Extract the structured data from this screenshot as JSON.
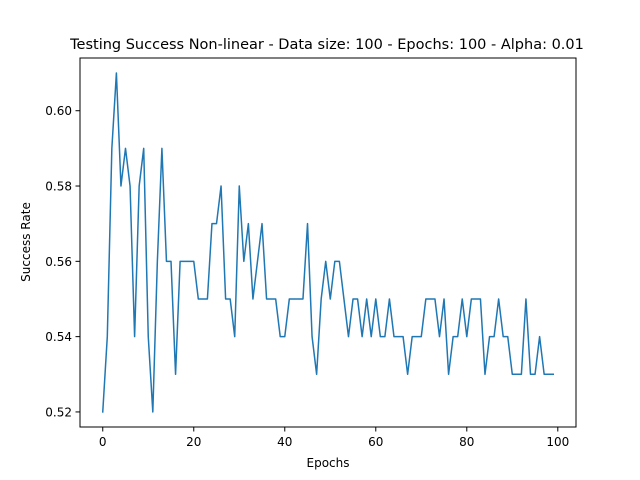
{
  "chart_data": {
    "type": "line",
    "title": "Testing Success Non-linear - Data size: 100 - Epochs: 100 - Alpha: 0.01",
    "xlabel": "Epochs",
    "ylabel": "Success Rate",
    "xlim": [
      -5,
      104
    ],
    "ylim": [
      0.516,
      0.614
    ],
    "xticks": [
      0,
      20,
      40,
      60,
      80,
      100
    ],
    "yticks": [
      0.52,
      0.54,
      0.56,
      0.58,
      0.6
    ],
    "ytick_labels": [
      "0.52",
      "0.54",
      "0.56",
      "0.58",
      "0.60"
    ],
    "grid": false,
    "legend": "none",
    "series": [
      {
        "color": "#1f77b4",
        "x": [
          0,
          1,
          2,
          3,
          4,
          5,
          6,
          7,
          8,
          9,
          10,
          11,
          12,
          13,
          14,
          15,
          16,
          17,
          18,
          19,
          20,
          21,
          22,
          23,
          24,
          25,
          26,
          27,
          28,
          29,
          30,
          31,
          32,
          33,
          34,
          35,
          36,
          37,
          38,
          39,
          40,
          41,
          42,
          43,
          44,
          45,
          46,
          47,
          48,
          49,
          50,
          51,
          52,
          53,
          54,
          55,
          56,
          57,
          58,
          59,
          60,
          61,
          62,
          63,
          64,
          65,
          66,
          67,
          68,
          69,
          70,
          71,
          72,
          73,
          74,
          75,
          76,
          77,
          78,
          79,
          80,
          81,
          82,
          83,
          84,
          85,
          86,
          87,
          88,
          89,
          90,
          91,
          92,
          93,
          94,
          95,
          96,
          97,
          98,
          99
        ],
        "values": [
          0.52,
          0.54,
          0.59,
          0.61,
          0.58,
          0.59,
          0.58,
          0.54,
          0.58,
          0.59,
          0.54,
          0.52,
          0.56,
          0.59,
          0.56,
          0.56,
          0.53,
          0.56,
          0.56,
          0.56,
          0.56,
          0.55,
          0.55,
          0.55,
          0.57,
          0.57,
          0.58,
          0.55,
          0.55,
          0.54,
          0.58,
          0.56,
          0.57,
          0.55,
          0.56,
          0.57,
          0.55,
          0.55,
          0.55,
          0.54,
          0.54,
          0.55,
          0.55,
          0.55,
          0.55,
          0.57,
          0.54,
          0.53,
          0.55,
          0.56,
          0.55,
          0.56,
          0.56,
          0.55,
          0.54,
          0.55,
          0.55,
          0.54,
          0.55,
          0.54,
          0.55,
          0.54,
          0.54,
          0.55,
          0.54,
          0.54,
          0.54,
          0.53,
          0.54,
          0.54,
          0.54,
          0.55,
          0.55,
          0.55,
          0.54,
          0.55,
          0.53,
          0.54,
          0.54,
          0.55,
          0.54,
          0.55,
          0.55,
          0.55,
          0.53,
          0.54,
          0.54,
          0.55,
          0.54,
          0.54,
          0.53,
          0.53,
          0.53,
          0.55,
          0.53,
          0.53,
          0.54,
          0.53,
          0.53,
          0.53
        ]
      }
    ]
  }
}
